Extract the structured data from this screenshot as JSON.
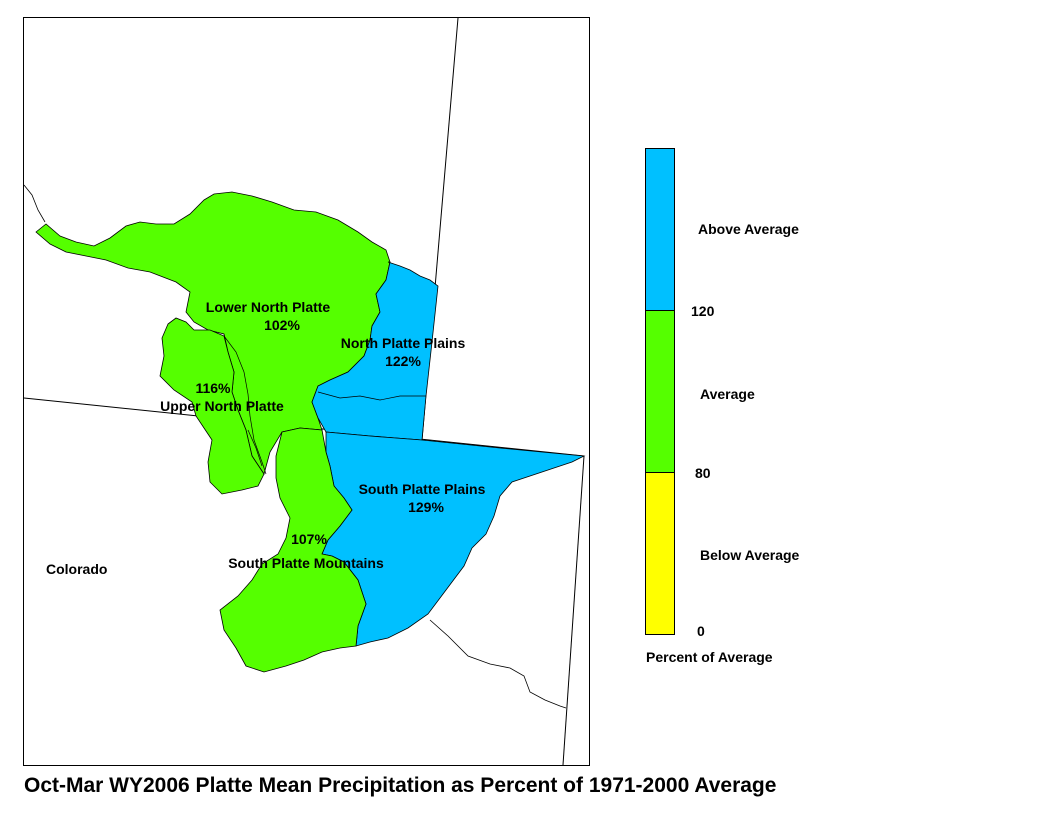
{
  "title": "Oct-Mar WY2006 Platte Mean Precipitation as Percent of 1971-2000 Average",
  "colors": {
    "above_average": "#00c0ff",
    "average": "#55ff00",
    "below_average": "#ffff00",
    "boundary": "#000000",
    "background": "#ffffff"
  },
  "regions": [
    {
      "name": "Lower North Platte",
      "percent": "102%",
      "category": "average"
    },
    {
      "name": "North Platte Plains",
      "percent": "122%",
      "category": "above_average"
    },
    {
      "name": "Upper North Platte",
      "percent": "116%",
      "category": "average"
    },
    {
      "name": "South Platte Plains",
      "percent": "129%",
      "category": "above_average"
    },
    {
      "name": "South Platte Mountains",
      "percent": "107%",
      "category": "average"
    }
  ],
  "state_label": "Colorado",
  "legend": {
    "title": "Percent of Average",
    "classes": [
      {
        "label": "Above Average",
        "color": "#00c0ff"
      },
      {
        "label": "Average",
        "color": "#55ff00"
      },
      {
        "label": "Below Average",
        "color": "#ffff00"
      }
    ],
    "breaks": [
      "120",
      "80",
      "0"
    ]
  }
}
